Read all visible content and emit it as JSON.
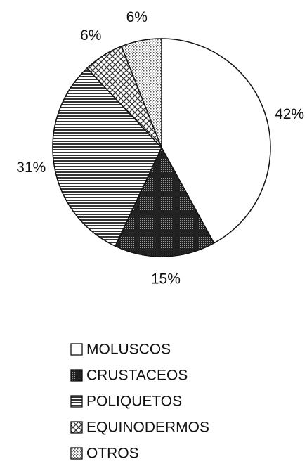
{
  "chart_data": {
    "type": "pie",
    "categories": [
      "MOLUSCOS",
      "CRUSTACEOS",
      "POLIQUETOS",
      "EQUINODERMOS",
      "OTROS"
    ],
    "values": [
      42,
      15,
      31,
      6,
      6
    ],
    "value_labels": [
      "42%",
      "15%",
      "31%",
      "6%",
      "6%"
    ],
    "colors": [
      "#ffffff",
      "#222222",
      "#333333",
      "#333333",
      "#555555"
    ]
  }
}
